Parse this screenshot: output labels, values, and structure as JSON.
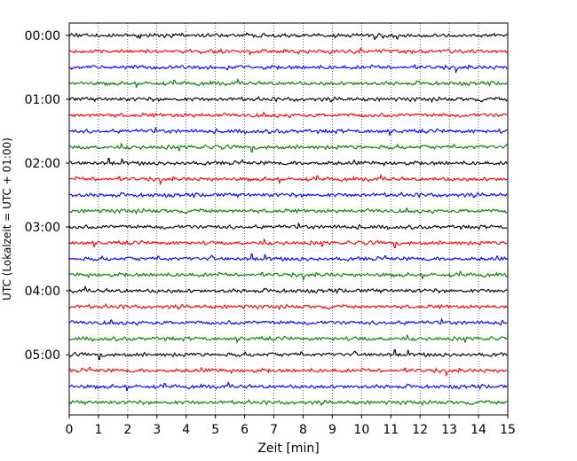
{
  "chart_data": {
    "type": "line",
    "title": "",
    "xlabel": "Zeit  [min]",
    "ylabel": "UTC (Lokalzeit = UTC + 01:00)",
    "xlim": [
      0,
      15
    ],
    "x_ticks": [
      "0",
      "1",
      "2",
      "3",
      "4",
      "5",
      "6",
      "7",
      "8",
      "9",
      "10",
      "11",
      "12",
      "13",
      "14",
      "15"
    ],
    "y_ticks": [
      "00:00",
      "01:00",
      "02:00",
      "03:00",
      "04:00",
      "05:00"
    ],
    "grid": "vertical dotted lines at each minute",
    "trace_colors": [
      "#000000",
      "#ff0000",
      "#0000ff",
      "#008000"
    ],
    "traces": [
      {
        "start": "00:00",
        "color": "#000000"
      },
      {
        "start": "00:15",
        "color": "#ff0000"
      },
      {
        "start": "00:30",
        "color": "#0000ff"
      },
      {
        "start": "00:45",
        "color": "#008000"
      },
      {
        "start": "01:00",
        "color": "#000000"
      },
      {
        "start": "01:15",
        "color": "#ff0000"
      },
      {
        "start": "01:30",
        "color": "#0000ff"
      },
      {
        "start": "01:45",
        "color": "#008000"
      },
      {
        "start": "02:00",
        "color": "#000000"
      },
      {
        "start": "02:15",
        "color": "#ff0000"
      },
      {
        "start": "02:30",
        "color": "#0000ff"
      },
      {
        "start": "02:45",
        "color": "#008000"
      },
      {
        "start": "03:00",
        "color": "#000000"
      },
      {
        "start": "03:15",
        "color": "#ff0000"
      },
      {
        "start": "03:30",
        "color": "#0000ff"
      },
      {
        "start": "03:45",
        "color": "#008000"
      },
      {
        "start": "04:00",
        "color": "#000000"
      },
      {
        "start": "04:15",
        "color": "#ff0000"
      },
      {
        "start": "04:30",
        "color": "#0000ff"
      },
      {
        "start": "04:45",
        "color": "#008000"
      },
      {
        "start": "05:00",
        "color": "#000000"
      },
      {
        "start": "05:15",
        "color": "#ff0000"
      },
      {
        "start": "05:30",
        "color": "#0000ff"
      },
      {
        "start": "05:45",
        "color": "#008000"
      }
    ]
  }
}
